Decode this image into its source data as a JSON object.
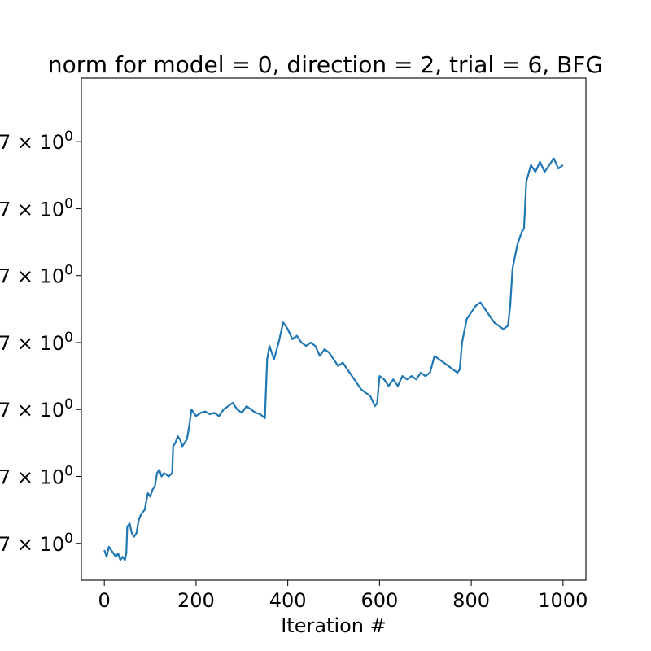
{
  "chart_data": {
    "type": "line",
    "title": "norm for model = 0, direction = 2, trial = 6, BFG",
    "xlabel": "Iteration #",
    "ylabel": "",
    "xlim": [
      -50,
      1050
    ],
    "ylim": [
      0,
      7.5
    ],
    "x_ticks": [
      0,
      200,
      400,
      600,
      800,
      1000
    ],
    "y_ticks": [
      {
        "value": 0.55,
        "label": "7 × 10",
        "exp": "0"
      },
      {
        "value": 1.55,
        "label": "7 × 10",
        "exp": "0"
      },
      {
        "value": 2.55,
        "label": "7 × 10",
        "exp": "0"
      },
      {
        "value": 3.55,
        "label": "7 × 10",
        "exp": "0"
      },
      {
        "value": 4.55,
        "label": "7 × 10",
        "exp": "0"
      },
      {
        "value": 5.55,
        "label": "7 × 10",
        "exp": "0"
      },
      {
        "value": 6.55,
        "label": "7 × 10",
        "exp": "0"
      }
    ],
    "grid": false,
    "series": [
      {
        "color": "#1f77b4",
        "x": [
          0,
          5,
          10,
          15,
          20,
          25,
          30,
          35,
          40,
          45,
          48,
          50,
          55,
          60,
          65,
          70,
          75,
          78,
          82,
          88,
          95,
          100,
          105,
          110,
          115,
          120,
          125,
          130,
          135,
          140,
          148,
          150,
          155,
          160,
          165,
          170,
          175,
          180,
          185,
          190,
          200,
          210,
          220,
          230,
          240,
          250,
          260,
          270,
          280,
          290,
          300,
          310,
          320,
          330,
          340,
          350,
          355,
          360,
          370,
          380,
          390,
          400,
          410,
          420,
          430,
          440,
          450,
          460,
          470,
          480,
          490,
          500,
          510,
          520,
          530,
          540,
          550,
          560,
          570,
          580,
          590,
          595,
          600,
          610,
          620,
          630,
          640,
          650,
          660,
          670,
          680,
          690,
          700,
          710,
          720,
          730,
          740,
          750,
          760,
          770,
          775,
          780,
          790,
          800,
          810,
          820,
          830,
          840,
          850,
          860,
          870,
          880,
          885,
          890,
          900,
          910,
          915,
          920,
          930,
          940,
          950,
          960,
          970,
          980,
          990,
          1000
        ],
        "y": [
          0.45,
          0.35,
          0.5,
          0.45,
          0.4,
          0.35,
          0.4,
          0.3,
          0.35,
          0.3,
          0.4,
          0.8,
          0.85,
          0.7,
          0.65,
          0.7,
          0.9,
          0.95,
          1.0,
          1.05,
          1.3,
          1.25,
          1.35,
          1.4,
          1.6,
          1.65,
          1.55,
          1.6,
          1.58,
          1.55,
          1.6,
          2.0,
          2.05,
          2.15,
          2.1,
          2.0,
          2.05,
          2.1,
          2.3,
          2.55,
          2.45,
          2.5,
          2.52,
          2.48,
          2.5,
          2.45,
          2.55,
          2.6,
          2.65,
          2.55,
          2.5,
          2.6,
          2.55,
          2.5,
          2.48,
          2.42,
          3.3,
          3.5,
          3.3,
          3.55,
          3.85,
          3.75,
          3.6,
          3.65,
          3.55,
          3.5,
          3.55,
          3.5,
          3.35,
          3.45,
          3.4,
          3.3,
          3.2,
          3.25,
          3.15,
          3.05,
          2.95,
          2.85,
          2.8,
          2.75,
          2.6,
          2.65,
          3.05,
          3.0,
          2.9,
          3.0,
          2.9,
          3.05,
          3.0,
          3.05,
          3.0,
          3.1,
          3.05,
          3.1,
          3.35,
          3.3,
          3.25,
          3.2,
          3.15,
          3.1,
          3.15,
          3.55,
          3.9,
          4.0,
          4.1,
          4.15,
          4.05,
          3.95,
          3.85,
          3.8,
          3.75,
          3.8,
          4.1,
          4.65,
          5.0,
          5.2,
          5.25,
          5.95,
          6.2,
          6.1,
          6.25,
          6.1,
          6.2,
          6.3,
          6.15,
          6.2
        ]
      }
    ]
  }
}
